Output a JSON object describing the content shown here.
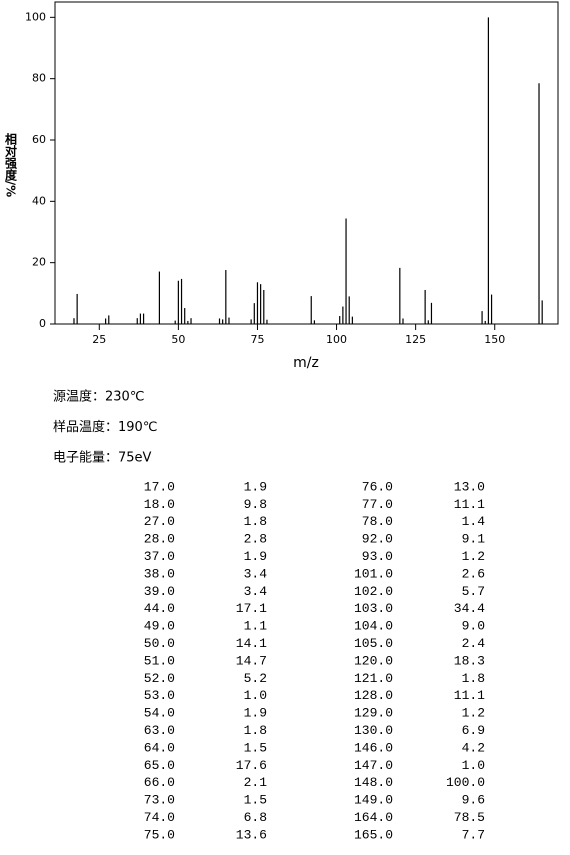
{
  "chart_data": {
    "type": "stem",
    "ylabel": "相对强度/%",
    "xlabel": "m/z",
    "x": [
      17,
      18,
      27,
      28,
      37,
      38,
      39,
      44,
      49,
      50,
      51,
      52,
      53,
      54,
      63,
      64,
      65,
      66,
      73,
      74,
      75,
      76,
      77,
      78,
      92,
      93,
      101,
      102,
      103,
      104,
      105,
      120,
      121,
      128,
      129,
      130,
      146,
      147,
      148,
      149,
      164,
      165
    ],
    "values": [
      1.9,
      9.8,
      1.8,
      2.8,
      1.9,
      3.4,
      3.4,
      17.1,
      1.1,
      14.1,
      14.7,
      5.2,
      1.0,
      1.9,
      1.8,
      1.5,
      17.6,
      2.1,
      1.5,
      6.8,
      13.6,
      13.0,
      11.1,
      1.4,
      9.1,
      1.2,
      2.6,
      5.7,
      34.4,
      9.0,
      2.4,
      18.3,
      1.8,
      11.1,
      1.2,
      6.9,
      4.2,
      1.0,
      100.0,
      9.6,
      78.5,
      7.7
    ],
    "color": "#000000",
    "xlim": [
      11,
      170
    ],
    "xticks": [
      25,
      50,
      75,
      100,
      125,
      150
    ],
    "ylim": [
      0,
      105
    ],
    "yticks": [
      0,
      20,
      40,
      60,
      80,
      100
    ]
  },
  "info": [
    "源温度：230℃",
    "样品温度：190℃",
    "电子能量：75eV"
  ],
  "table": {
    "rows": [
      [
        "17.0",
        "1.9",
        "76.0",
        "13.0"
      ],
      [
        "18.0",
        "9.8",
        "77.0",
        "11.1"
      ],
      [
        "27.0",
        "1.8",
        "78.0",
        "1.4"
      ],
      [
        "28.0",
        "2.8",
        "92.0",
        "9.1"
      ],
      [
        "37.0",
        "1.9",
        "93.0",
        "1.2"
      ],
      [
        "38.0",
        "3.4",
        "101.0",
        "2.6"
      ],
      [
        "39.0",
        "3.4",
        "102.0",
        "5.7"
      ],
      [
        "44.0",
        "17.1",
        "103.0",
        "34.4"
      ],
      [
        "49.0",
        "1.1",
        "104.0",
        "9.0"
      ],
      [
        "50.0",
        "14.1",
        "105.0",
        "2.4"
      ],
      [
        "51.0",
        "14.7",
        "120.0",
        "18.3"
      ],
      [
        "52.0",
        "5.2",
        "121.0",
        "1.8"
      ],
      [
        "53.0",
        "1.0",
        "128.0",
        "11.1"
      ],
      [
        "54.0",
        "1.9",
        "129.0",
        "1.2"
      ],
      [
        "63.0",
        "1.8",
        "130.0",
        "6.9"
      ],
      [
        "64.0",
        "1.5",
        "146.0",
        "4.2"
      ],
      [
        "65.0",
        "17.6",
        "147.0",
        "1.0"
      ],
      [
        "66.0",
        "2.1",
        "148.0",
        "100.0"
      ],
      [
        "73.0",
        "1.5",
        "149.0",
        "9.6"
      ],
      [
        "74.0",
        "6.8",
        "164.0",
        "78.5"
      ],
      [
        "75.0",
        "13.6",
        "165.0",
        "7.7"
      ]
    ]
  }
}
